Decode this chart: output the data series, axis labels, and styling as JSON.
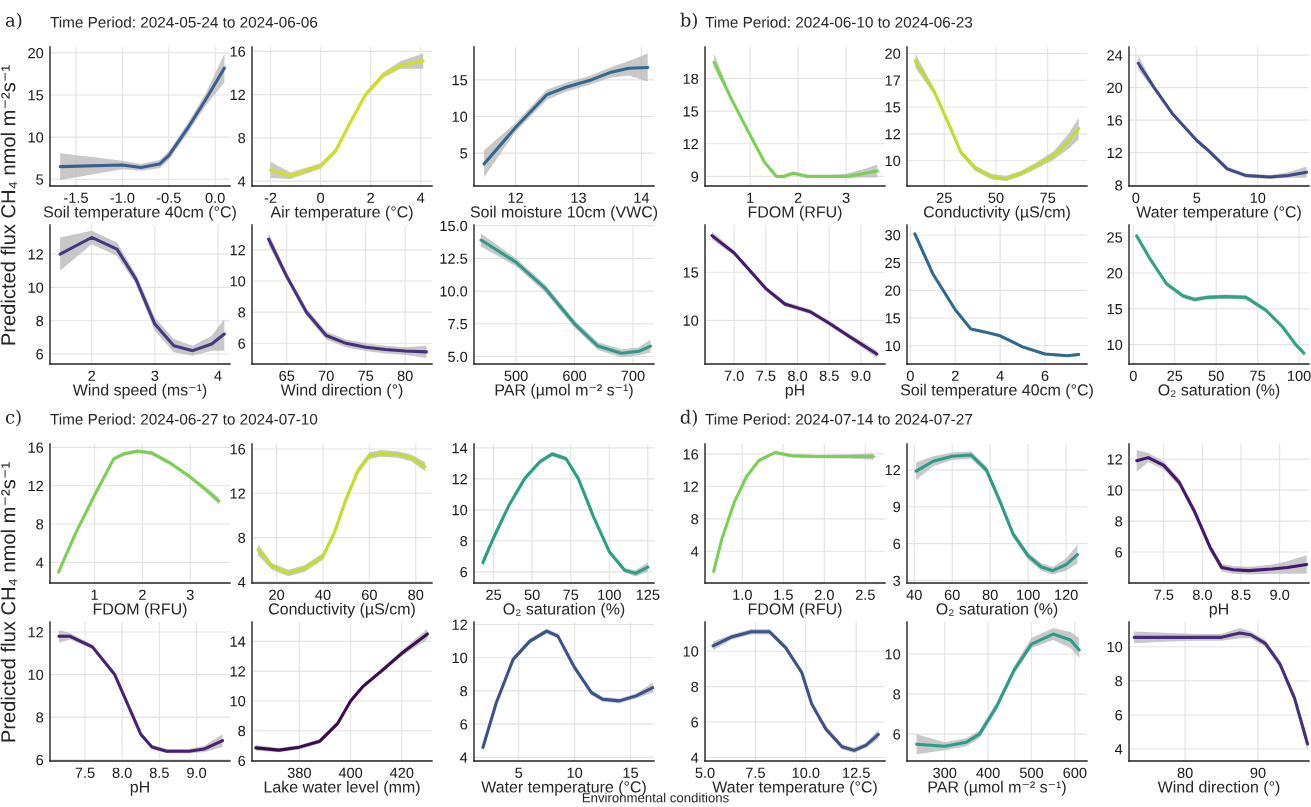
{
  "chart_data": [
    {
      "type": "line",
      "title": "Time Period: 2024-05-24 to 2024-06-06",
      "annotations": [
        "a)"
      ],
      "ylabel": "Predicted flux CH₄ nmol m⁻²s⁻¹",
      "xlabel": "Soil temperature 40cm (°C)",
      "x": [
        -1.67,
        -1.0,
        -0.8,
        -0.6,
        -0.5,
        -0.3,
        -0.1,
        0.1
      ],
      "series": [
        {
          "color": "#3b5d8f",
          "values": [
            6.5,
            6.7,
            6.4,
            6.8,
            7.8,
            11.0,
            14.5,
            18.2
          ],
          "lower": [
            4.9,
            6.2,
            6.0,
            6.3,
            7.3,
            10.4,
            13.8,
            16.5
          ],
          "upper": [
            8.1,
            7.2,
            6.8,
            7.3,
            8.3,
            11.6,
            15.2,
            19.9
          ]
        }
      ],
      "xlim": [
        -1.78,
        0.16
      ],
      "ylim": [
        4.2,
        20.7
      ],
      "xticks": [
        -1.5,
        {
          "value": -1,
          "label": "-1.0"
        },
        -0.5,
        {
          "value": 0,
          "label": "0.0"
        }
      ],
      "yticks": [
        5,
        10,
        15,
        20
      ],
      "grid": true
    },
    {
      "type": "line",
      "xlabel": "Air temperature (°C)",
      "x": [
        -2,
        -1.2,
        0,
        0.6,
        1.2,
        1.8,
        2.5,
        3.2,
        4.1
      ],
      "series": [
        {
          "color": "#d0e11c",
          "values": [
            5.0,
            4.5,
            5.4,
            6.8,
            9.5,
            12.0,
            13.8,
            14.7,
            15.1
          ],
          "lower": [
            4.3,
            4.2,
            5.15,
            6.55,
            9.25,
            11.75,
            13.55,
            14.4,
            14.4
          ],
          "upper": [
            5.8,
            4.8,
            5.65,
            7.05,
            9.75,
            12.25,
            14.05,
            15.1,
            15.8
          ]
        }
      ],
      "xlim": [
        -2.74,
        4.45
      ],
      "ylim": [
        3.55,
        16.4
      ],
      "xticks": [
        -2,
        0,
        2,
        4
      ],
      "yticks": [
        4,
        8,
        12,
        16
      ],
      "grid": true
    },
    {
      "type": "line",
      "xlabel": "Soil moisture 10cm (VWC)",
      "x": [
        11.5,
        12.0,
        12.5,
        12.8,
        13.2,
        13.5,
        13.8,
        14.1
      ],
      "series": [
        {
          "color": "#31688e",
          "values": [
            3.5,
            8.5,
            13.0,
            14.0,
            15.0,
            16.0,
            16.6,
            16.7
          ],
          "lower": [
            1.7,
            7.9,
            12.3,
            13.4,
            14.4,
            15.3,
            15.6,
            14.8
          ],
          "upper": [
            5.4,
            9.1,
            13.7,
            14.6,
            15.6,
            16.7,
            17.6,
            18.6
          ]
        }
      ],
      "xlim": [
        11.34,
        14.2
      ],
      "ylim": [
        0.5,
        19.5
      ],
      "xticks": [
        12,
        13,
        14
      ],
      "yticks": [
        5,
        10,
        15
      ],
      "grid": true
    },
    {
      "type": "line",
      "xlabel": "Wind speed (ms⁻¹)",
      "x": [
        1.5,
        2.0,
        2.4,
        2.7,
        3.0,
        3.3,
        3.6,
        3.9,
        4.1
      ],
      "series": [
        {
          "color": "#443a83",
          "values": [
            12.0,
            13.0,
            12.3,
            10.5,
            7.8,
            6.5,
            6.2,
            6.6,
            7.2
          ],
          "lower": [
            11.0,
            12.6,
            11.9,
            10.2,
            7.4,
            6.1,
            5.9,
            6.2,
            6.2
          ],
          "upper": [
            13.0,
            13.4,
            12.7,
            10.8,
            8.2,
            6.9,
            6.5,
            7.1,
            8.1
          ]
        }
      ],
      "xlim": [
        1.34,
        4.19
      ],
      "ylim": [
        5.4,
        13.75
      ],
      "xticks": [
        2,
        3,
        4
      ],
      "yticks": [
        6,
        8,
        10,
        12
      ],
      "grid": true
    },
    {
      "type": "line",
      "xlabel": "Wind direction (°)",
      "x": [
        62.7,
        65,
        67.5,
        70,
        72.5,
        75,
        77.5,
        80,
        82.7
      ],
      "series": [
        {
          "color": "#472f7d",
          "values": [
            12.7,
            10.3,
            8.0,
            6.5,
            6.0,
            5.75,
            5.6,
            5.5,
            5.45
          ],
          "lower": [
            12.3,
            10.05,
            7.75,
            6.25,
            5.75,
            5.5,
            5.35,
            5.25,
            5.05
          ],
          "upper": [
            13.1,
            10.55,
            8.25,
            6.75,
            6.25,
            6.0,
            5.85,
            5.75,
            5.85
          ]
        }
      ],
      "xlim": [
        60.6,
        83.4
      ],
      "ylim": [
        4.67,
        13.6
      ],
      "xticks": [
        65,
        70,
        75,
        80
      ],
      "yticks": [
        6,
        8,
        10,
        12
      ],
      "grid": true
    },
    {
      "type": "line",
      "xlabel": "PAR (µmol m⁻² s⁻¹)",
      "x": [
        440,
        500,
        550,
        600,
        640,
        680,
        710,
        730
      ],
      "series": [
        {
          "color": "#2f9a8a",
          "values": [
            13.9,
            12.2,
            10.2,
            7.5,
            5.8,
            5.25,
            5.4,
            5.8
          ],
          "lower": [
            13.4,
            11.9,
            9.9,
            7.2,
            5.5,
            4.95,
            5.1,
            5.3
          ],
          "upper": [
            14.4,
            12.5,
            10.5,
            7.8,
            6.1,
            5.55,
            5.7,
            6.3
          ]
        }
      ],
      "xlim": [
        428,
        736
      ],
      "ylim": [
        4.43,
        15.05
      ],
      "xticks": [
        500,
        600,
        700
      ],
      "yticks": [
        {
          "value": 5,
          "label": "5.0"
        },
        7.5,
        {
          "value": 10,
          "label": "10.0"
        },
        12.5,
        {
          "value": 15,
          "label": "15.0"
        }
      ],
      "grid": true
    },
    {
      "type": "line",
      "title": "Time Period: 2024-06-10 to 2024-06-23",
      "annotations": [
        "b)"
      ],
      "xlabel": "FDOM (RFU)",
      "x": [
        0.25,
        0.6,
        1.0,
        1.3,
        1.55,
        1.7,
        1.9,
        2.2,
        2.6,
        3.0,
        3.4,
        3.65
      ],
      "series": [
        {
          "color": "#7ad151",
          "values": [
            19.5,
            16.2,
            12.8,
            10.3,
            9.0,
            9.0,
            9.3,
            9.0,
            9.0,
            9.0,
            9.3,
            9.5
          ],
          "lower": [
            19.0,
            16.0,
            12.65,
            10.15,
            8.85,
            8.85,
            9.15,
            8.85,
            8.85,
            8.85,
            8.9,
            8.9
          ],
          "upper": [
            20.3,
            16.4,
            12.95,
            10.45,
            9.15,
            9.15,
            9.45,
            9.15,
            9.15,
            9.25,
            9.7,
            10.1
          ]
        }
      ],
      "xlim": [
        0.06,
        3.81
      ],
      "ylim": [
        8.12,
        20.9
      ],
      "xticks": [
        1,
        2,
        3
      ],
      "yticks": [
        9,
        12,
        15,
        18
      ],
      "grid": true
    },
    {
      "type": "line",
      "xlabel": "Conductivity (µS/cm)",
      "x": [
        11,
        20,
        27,
        33,
        40,
        48,
        55,
        62,
        70,
        78,
        85,
        90
      ],
      "series": [
        {
          "color": "#bddf26",
          "values": [
            19.3,
            16.5,
            13.5,
            10.8,
            9.3,
            8.5,
            8.3,
            8.8,
            9.6,
            10.5,
            11.8,
            13.0
          ],
          "lower": [
            18.7,
            16.2,
            13.25,
            10.55,
            9.05,
            8.25,
            8.1,
            8.55,
            9.3,
            10.1,
            11.1,
            12.0
          ],
          "upper": [
            20.0,
            16.8,
            13.75,
            11.05,
            9.55,
            8.75,
            8.6,
            9.05,
            9.9,
            10.9,
            12.5,
            14.0
          ]
        }
      ],
      "xlim": [
        7,
        94
      ],
      "ylim": [
        7.64,
        20.6
      ],
      "xticks": [
        25,
        50,
        75
      ],
      "yticks": [
        10,
        {
          "value": 12.5,
          "label": "12"
        },
        15,
        {
          "value": 17.5,
          "label": "17"
        },
        20
      ],
      "grid": true
    },
    {
      "type": "line",
      "xlabel": "Water temperature (°C)",
      "x": [
        0.2,
        1.5,
        3,
        5,
        6,
        7.5,
        9,
        11,
        12.5,
        14
      ],
      "series": [
        {
          "color": "#3e4a89",
          "values": [
            23.0,
            20.0,
            16.8,
            13.5,
            12.2,
            10.0,
            9.2,
            9.0,
            9.2,
            9.6
          ],
          "lower": [
            22.2,
            19.7,
            16.55,
            13.25,
            11.95,
            9.75,
            8.95,
            8.75,
            8.9,
            8.9
          ],
          "upper": [
            24.0,
            20.3,
            17.05,
            13.75,
            12.45,
            10.25,
            9.45,
            9.25,
            9.6,
            10.3
          ]
        }
      ],
      "xlim": [
        -0.56,
        14.2
      ],
      "ylim": [
        7.9,
        25.0
      ],
      "xticks": [
        0,
        5,
        10
      ],
      "yticks": [
        8,
        12,
        16,
        20,
        24
      ],
      "grid": true
    },
    {
      "type": "line",
      "xlabel": "pH",
      "x": [
        6.65,
        7.0,
        7.5,
        7.8,
        8.0,
        8.2,
        8.5,
        8.8,
        9.25
      ],
      "series": [
        {
          "color": "#481a6c",
          "values": [
            18.8,
            17.0,
            13.3,
            11.7,
            11.3,
            10.9,
            9.7,
            8.4,
            6.5
          ],
          "lower": [
            18.4,
            16.75,
            13.05,
            11.45,
            11.05,
            10.65,
            9.45,
            8.15,
            6.1
          ],
          "upper": [
            19.2,
            17.25,
            13.55,
            11.95,
            11.55,
            11.15,
            9.95,
            8.65,
            6.9
          ]
        }
      ],
      "xlim": [
        6.54,
        9.38
      ],
      "ylim": [
        5.47,
        19.9
      ],
      "xticks": [
        {
          "value": 7,
          "label": "7.0"
        },
        7.5,
        {
          "value": 8,
          "label": "8.0"
        },
        8.5,
        {
          "value": 9,
          "label": "9.0"
        }
      ],
      "yticks": [
        10,
        15
      ],
      "grid": true
    },
    {
      "type": "line",
      "xlabel": "Soil temperature 40cm (°C)",
      "x": [
        0.2,
        1,
        2,
        2.7,
        3.3,
        4,
        5,
        6,
        7,
        7.5
      ],
      "series": [
        {
          "color": "#31688e",
          "values": [
            30.2,
            23.0,
            16.5,
            13.0,
            12.5,
            11.8,
            9.8,
            8.5,
            8.2,
            8.4
          ],
          "lower": [
            29.8,
            22.75,
            16.25,
            12.75,
            12.25,
            11.55,
            9.55,
            8.25,
            7.95,
            8.1
          ],
          "upper": [
            30.6,
            23.25,
            16.75,
            13.25,
            12.75,
            12.05,
            10.05,
            8.75,
            8.45,
            8.7
          ]
        }
      ],
      "xlim": [
        -0.15,
        7.87
      ],
      "ylim": [
        6.7,
        31.8
      ],
      "xticks": [
        0,
        2,
        4,
        6
      ],
      "yticks": [
        10,
        15,
        20,
        25,
        30
      ],
      "grid": true
    },
    {
      "type": "line",
      "xlabel": "O₂ saturation (%)",
      "x": [
        2,
        10,
        20,
        30,
        37,
        45,
        55,
        68,
        80,
        90,
        98,
        103
      ],
      "series": [
        {
          "color": "#2fa383",
          "values": [
            25.2,
            22.0,
            18.5,
            16.8,
            16.3,
            16.6,
            16.7,
            16.6,
            14.8,
            12.5,
            10.0,
            8.8
          ],
          "lower": [
            24.8,
            21.7,
            18.2,
            16.5,
            16.0,
            16.3,
            16.4,
            16.3,
            14.5,
            12.2,
            9.7,
            8.4
          ],
          "upper": [
            25.6,
            22.3,
            18.8,
            17.1,
            16.6,
            16.9,
            17.0,
            16.9,
            15.1,
            12.8,
            10.3,
            9.2
          ]
        }
      ],
      "xlim": [
        -2.6,
        106
      ],
      "ylim": [
        7.3,
        26.7
      ],
      "xticks": [
        0,
        25,
        50,
        75,
        100
      ],
      "yticks": [
        10,
        15,
        20,
        25
      ],
      "grid": true
    },
    {
      "type": "line",
      "title": "Time Period: 2024-06-27 to 2024-07-10",
      "annotations": [
        "c)"
      ],
      "ylabel": "Predicted flux CH₄ nmol m⁻²s⁻¹",
      "xlabel": "FDOM (RFU)",
      "x": [
        0.25,
        0.6,
        1.0,
        1.4,
        1.6,
        1.9,
        2.2,
        2.6,
        3.0,
        3.3,
        3.6
      ],
      "series": [
        {
          "color": "#7ad151",
          "values": [
            3.0,
            7.0,
            11.0,
            14.8,
            15.3,
            15.6,
            15.4,
            14.3,
            12.9,
            11.7,
            10.4
          ],
          "lower": [
            2.7,
            6.8,
            10.8,
            14.6,
            15.1,
            15.4,
            15.2,
            14.1,
            12.7,
            11.45,
            10.05
          ],
          "upper": [
            3.3,
            7.2,
            11.2,
            15.0,
            15.5,
            15.8,
            15.6,
            14.5,
            13.1,
            11.95,
            10.75
          ]
        }
      ],
      "xlim": [
        0.07,
        3.83
      ],
      "ylim": [
        1.85,
        16.35
      ],
      "xticks": [
        1,
        2,
        3
      ],
      "yticks": [
        4,
        8,
        12,
        16
      ],
      "grid": true
    },
    {
      "type": "line",
      "xlabel": "Conductivity (µS/cm)",
      "x": [
        12,
        18,
        25,
        32,
        40,
        45,
        50,
        55,
        60,
        65,
        72,
        78,
        84
      ],
      "series": [
        {
          "color": "#c2df23",
          "values": [
            6.9,
            5.4,
            4.8,
            5.2,
            6.3,
            8.5,
            11.5,
            14.0,
            15.4,
            15.6,
            15.5,
            15.2,
            14.4
          ],
          "lower": [
            6.4,
            5.1,
            4.5,
            4.9,
            6.0,
            8.2,
            11.2,
            13.7,
            15.1,
            15.3,
            15.2,
            14.9,
            14.0
          ],
          "upper": [
            7.4,
            5.7,
            5.1,
            5.5,
            6.6,
            8.8,
            11.8,
            14.3,
            15.7,
            15.9,
            15.8,
            15.5,
            14.8
          ]
        }
      ],
      "xlim": [
        9.4,
        87
      ],
      "ylim": [
        3.9,
        16.45
      ],
      "xticks": [
        20,
        40,
        60,
        80
      ],
      "yticks": [
        4,
        8,
        12,
        16
      ],
      "grid": true
    },
    {
      "type": "line",
      "xlabel": "O₂ saturation (%)",
      "x": [
        18,
        25,
        35,
        45,
        55,
        63,
        72,
        80,
        90,
        100,
        110,
        117,
        125
      ],
      "series": [
        {
          "color": "#29a085",
          "values": [
            6.6,
            8.2,
            10.3,
            12.0,
            13.1,
            13.6,
            13.3,
            12.0,
            9.5,
            7.3,
            6.1,
            5.9,
            6.3
          ],
          "lower": [
            6.3,
            8.0,
            10.15,
            11.85,
            12.95,
            13.45,
            13.15,
            11.85,
            9.35,
            7.15,
            5.95,
            5.7,
            6.0
          ],
          "upper": [
            6.9,
            8.4,
            10.45,
            12.15,
            13.25,
            13.75,
            13.45,
            12.15,
            9.65,
            7.45,
            6.25,
            6.1,
            6.6
          ]
        }
      ],
      "xlim": [
        12.3,
        129
      ],
      "ylim": [
        5.28,
        14.25
      ],
      "xticks": [
        25,
        50,
        75,
        100,
        125
      ],
      "yticks": [
        6,
        8,
        10,
        12,
        14
      ],
      "grid": true
    },
    {
      "type": "line",
      "xlabel": "pH",
      "x": [
        7.15,
        7.3,
        7.6,
        7.9,
        8.1,
        8.25,
        8.4,
        8.6,
        8.9,
        9.1,
        9.35
      ],
      "series": [
        {
          "color": "#482173",
          "values": [
            11.8,
            11.8,
            11.3,
            10.0,
            8.4,
            7.2,
            6.6,
            6.4,
            6.4,
            6.5,
            6.9
          ],
          "lower": [
            11.5,
            11.65,
            11.2,
            9.9,
            8.3,
            7.1,
            6.5,
            6.3,
            6.3,
            6.35,
            6.6
          ],
          "upper": [
            12.1,
            11.95,
            11.4,
            10.1,
            8.5,
            7.3,
            6.7,
            6.5,
            6.5,
            6.65,
            7.2
          ]
        }
      ],
      "xlim": [
        7.03,
        9.45
      ],
      "ylim": [
        5.94,
        12.47
      ],
      "xticks": [
        7.5,
        {
          "value": 8,
          "label": "8.0"
        },
        8.5,
        {
          "value": 9,
          "label": "9.0"
        }
      ],
      "yticks": [
        6,
        8,
        10,
        12
      ],
      "grid": true
    },
    {
      "type": "line",
      "xlabel": "Lake water level (mm)",
      "x": [
        363,
        372,
        380,
        388,
        395,
        400,
        405,
        412,
        420,
        430
      ],
      "series": [
        {
          "color": "#3a0c4f",
          "values": [
            6.85,
            6.7,
            6.9,
            7.3,
            8.5,
            10.0,
            11.0,
            12.0,
            13.2,
            14.5
          ],
          "lower": [
            6.65,
            6.55,
            6.75,
            7.15,
            8.35,
            9.85,
            10.85,
            11.85,
            13.0,
            14.15
          ],
          "upper": [
            7.05,
            6.85,
            7.05,
            7.45,
            8.65,
            10.15,
            11.15,
            12.15,
            13.4,
            14.85
          ]
        }
      ],
      "xlim": [
        361.5,
        431.8
      ],
      "ylim": [
        5.97,
        15.3
      ],
      "xticks": [
        380,
        400,
        420
      ],
      "yticks": [
        6,
        8,
        10,
        12,
        14
      ],
      "grid": true
    },
    {
      "type": "line",
      "xlabel": "Water temperature (°C)",
      "x": [
        1.8,
        3,
        4.5,
        6,
        7.5,
        8.5,
        10,
        11.5,
        12.5,
        14,
        15.5,
        17
      ],
      "series": [
        {
          "color": "#3b528b",
          "values": [
            4.6,
            7.3,
            9.9,
            11.0,
            11.6,
            11.3,
            9.4,
            7.9,
            7.5,
            7.4,
            7.7,
            8.2
          ],
          "lower": [
            4.3,
            7.15,
            9.75,
            10.85,
            11.45,
            11.15,
            9.25,
            7.75,
            7.35,
            7.25,
            7.55,
            7.9
          ],
          "upper": [
            4.9,
            7.45,
            10.05,
            11.15,
            11.75,
            11.45,
            9.55,
            8.05,
            7.65,
            7.55,
            7.85,
            8.5
          ]
        }
      ],
      "xlim": [
        1.0,
        17.1
      ],
      "ylim": [
        3.78,
        12.15
      ],
      "xticks": [
        5,
        10,
        15
      ],
      "yticks": [
        4,
        6,
        8,
        10,
        12
      ],
      "grid": true
    },
    {
      "type": "line",
      "title": "Time Period: 2024-07-14 to 2024-07-27",
      "annotations": [
        "d)"
      ],
      "xlabel": "FDOM (RFU)",
      "x": [
        0.65,
        0.75,
        0.9,
        1.05,
        1.2,
        1.4,
        1.6,
        1.9,
        2.3,
        2.6
      ],
      "series": [
        {
          "color": "#7ad151",
          "values": [
            1.5,
            5.5,
            10.0,
            13.2,
            15.2,
            16.2,
            15.8,
            15.7,
            15.7,
            15.7
          ],
          "lower": [
            1.3,
            5.3,
            9.8,
            13.0,
            15.0,
            16.0,
            15.6,
            15.5,
            15.45,
            15.3
          ],
          "upper": [
            1.7,
            5.7,
            10.2,
            13.4,
            15.4,
            16.4,
            16.0,
            15.9,
            15.95,
            16.1
          ]
        }
      ],
      "xlim": [
        0.545,
        2.74
      ],
      "ylim": [
        0.07,
        17.25
      ],
      "xticks": [
        {
          "value": 1,
          "label": "1.0"
        },
        1.5,
        {
          "value": 2,
          "label": "2.0"
        },
        2.5
      ],
      "yticks": [
        4,
        8,
        12,
        16
      ],
      "grid": true
    },
    {
      "type": "line",
      "xlabel": "O₂ saturation (%)",
      "x": [
        41,
        50,
        60,
        70,
        78,
        85,
        92,
        100,
        107,
        113,
        120,
        126
      ],
      "series": [
        {
          "color": "#2d9a8a",
          "values": [
            11.9,
            12.7,
            13.1,
            13.2,
            12.0,
            9.5,
            6.8,
            5.0,
            4.1,
            3.8,
            4.3,
            5.1
          ],
          "lower": [
            11.2,
            12.3,
            12.8,
            12.9,
            11.7,
            9.2,
            6.5,
            4.7,
            3.8,
            3.5,
            3.8,
            4.4
          ],
          "upper": [
            12.6,
            13.1,
            13.4,
            13.5,
            12.3,
            9.8,
            7.1,
            5.3,
            4.4,
            4.1,
            4.8,
            5.9
          ]
        }
      ],
      "xlim": [
        36.2,
        131
      ],
      "ylim": [
        2.8,
        14.1
      ],
      "xticks": [
        40,
        60,
        80,
        100,
        120
      ],
      "yticks": [
        3,
        6,
        9,
        12
      ],
      "grid": true
    },
    {
      "type": "line",
      "xlabel": "pH",
      "x": [
        7.15,
        7.3,
        7.5,
        7.7,
        7.9,
        8.1,
        8.25,
        8.4,
        8.6,
        8.9,
        9.1,
        9.35
      ],
      "series": [
        {
          "color": "#46176e",
          "values": [
            11.9,
            12.1,
            11.6,
            10.5,
            8.6,
            6.3,
            5.0,
            4.85,
            4.8,
            4.9,
            5.0,
            5.2
          ],
          "lower": [
            11.2,
            11.8,
            11.35,
            10.25,
            8.35,
            6.05,
            4.75,
            4.6,
            4.55,
            4.6,
            4.6,
            4.6
          ],
          "upper": [
            12.6,
            12.4,
            11.85,
            10.75,
            8.85,
            6.55,
            5.25,
            5.1,
            5.05,
            5.2,
            5.4,
            5.8
          ]
        }
      ],
      "xlim": [
        7.05,
        9.38
      ],
      "ylim": [
        4.0,
        12.98
      ],
      "xticks": [
        7.5,
        {
          "value": 8,
          "label": "8.0"
        },
        8.5,
        {
          "value": 9,
          "label": "9.0"
        }
      ],
      "yticks": [
        6,
        8,
        10,
        12
      ],
      "grid": true
    },
    {
      "type": "line",
      "xlabel": "Water temperature (°C)",
      "x": [
        5.4,
        6.3,
        7.3,
        8.2,
        9.0,
        9.8,
        10.3,
        11.0,
        11.8,
        12.4,
        13.0,
        13.6
      ],
      "series": [
        {
          "color": "#3b528b",
          "values": [
            10.3,
            10.8,
            11.1,
            11.1,
            10.2,
            8.8,
            7.0,
            5.6,
            4.6,
            4.4,
            4.7,
            5.3
          ],
          "lower": [
            10.05,
            10.65,
            10.95,
            10.95,
            10.05,
            8.65,
            6.85,
            5.45,
            4.45,
            4.25,
            4.55,
            5.05
          ],
          "upper": [
            10.55,
            10.95,
            11.25,
            11.25,
            10.35,
            8.95,
            7.15,
            5.75,
            4.75,
            4.55,
            4.85,
            5.55
          ]
        }
      ],
      "xlim": [
        5.0,
        13.93
      ],
      "ylim": [
        3.8,
        11.65
      ],
      "xticks": [
        {
          "value": 5,
          "label": "5.0"
        },
        7.5,
        {
          "value": 10,
          "label": "10.0"
        },
        12.5
      ],
      "yticks": [
        4,
        6,
        8,
        10
      ],
      "grid": true
    },
    {
      "type": "line",
      "xlabel": "PAR (µmol m⁻² s⁻¹)",
      "x": [
        235,
        300,
        350,
        380,
        420,
        460,
        500,
        550,
        590,
        610
      ],
      "series": [
        {
          "color": "#2c9d8c",
          "values": [
            5.5,
            5.4,
            5.6,
            6.0,
            7.4,
            9.2,
            10.5,
            11.0,
            10.7,
            10.2
          ],
          "lower": [
            5.0,
            5.2,
            5.4,
            5.8,
            7.2,
            9.0,
            10.3,
            10.7,
            10.3,
            9.8
          ],
          "upper": [
            6.0,
            5.6,
            5.8,
            6.2,
            7.6,
            9.4,
            10.8,
            11.3,
            11.1,
            10.8
          ]
        }
      ],
      "xlim": [
        213,
        628
      ],
      "ylim": [
        4.66,
        11.6
      ],
      "xticks": [
        300,
        400,
        500,
        600
      ],
      "yticks": [
        6,
        8,
        10
      ],
      "grid": true
    },
    {
      "type": "line",
      "annotations": [
        "Environmental conditions"
      ],
      "xlabel": "Wind direction (°)",
      "x": [
        73,
        78,
        82,
        85,
        87.5,
        89,
        91,
        93,
        95,
        96.8
      ],
      "series": [
        {
          "color": "#472d7b",
          "values": [
            10.55,
            10.55,
            10.55,
            10.55,
            10.8,
            10.7,
            10.2,
            9.0,
            7.0,
            4.3
          ],
          "lower": [
            10.2,
            10.3,
            10.35,
            10.35,
            10.5,
            10.5,
            10.0,
            8.8,
            6.75,
            3.9
          ],
          "upper": [
            10.9,
            10.8,
            10.75,
            10.75,
            11.1,
            10.9,
            10.4,
            9.2,
            7.25,
            4.7
          ]
        }
      ],
      "xlim": [
        72.3,
        97.0
      ],
      "ylim": [
        3.3,
        11.45
      ],
      "xticks": [
        80,
        90
      ],
      "yticks": [
        4,
        6,
        8,
        10
      ],
      "grid": true
    }
  ]
}
